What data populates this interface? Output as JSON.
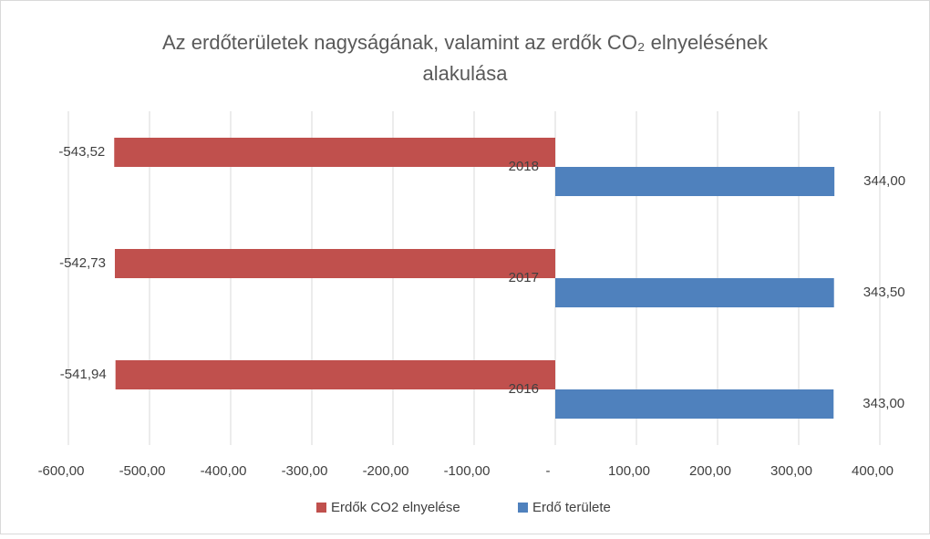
{
  "chart_data": {
    "type": "barh",
    "title": [
      "Az erdőterületek nagyságának, valamint az erdők CO₂ elnyelésének",
      "alakulása"
    ],
    "categories": [
      "2016",
      "2017",
      "2018"
    ],
    "series": [
      {
        "name": "Erdők CO2 elnyelése",
        "color": "#c0504d",
        "values": [
          -541.94,
          -542.73,
          -543.52
        ],
        "value_labels": [
          "-541,94",
          "-542,73",
          "-543,52"
        ]
      },
      {
        "name": "Erdő területe",
        "color": "#4f81bd",
        "values": [
          343.0,
          343.5,
          344.0
        ],
        "value_labels": [
          "343,00",
          "343,50",
          "344,00"
        ]
      }
    ],
    "xlim": [
      -600,
      400
    ],
    "xticks": [
      {
        "value": -600,
        "label": "-600,00"
      },
      {
        "value": -500,
        "label": "-500,00"
      },
      {
        "value": -400,
        "label": "-400,00"
      },
      {
        "value": -300,
        "label": "-300,00"
      },
      {
        "value": -200,
        "label": "-200,00"
      },
      {
        "value": -100,
        "label": "-100,00"
      },
      {
        "value": 0,
        "label": "-"
      },
      {
        "value": 100,
        "label": "100,00"
      },
      {
        "value": 200,
        "label": "200,00"
      },
      {
        "value": 300,
        "label": "300,00"
      },
      {
        "value": 400,
        "label": "400,00"
      }
    ],
    "grid": true,
    "legend": "bottom"
  }
}
